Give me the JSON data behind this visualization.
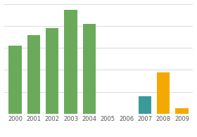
{
  "categories": [
    "2000",
    "2001",
    "2002",
    "2003",
    "2004",
    "2005",
    "2006",
    "2007",
    "2008",
    "2009"
  ],
  "values": [
    62,
    72,
    78,
    95,
    82,
    0,
    0,
    16,
    38,
    5
  ],
  "bar_colors": [
    "#6aaa5a",
    "#6aaa5a",
    "#6aaa5a",
    "#6aaa5a",
    "#6aaa5a",
    "#6aaa5a",
    "#6aaa5a",
    "#3a9a9a",
    "#f5a800",
    "#f5a800"
  ],
  "ylim": [
    0,
    100
  ],
  "background_color": "#ffffff",
  "grid_color": "#dddddd",
  "tick_fontsize": 6.0,
  "bar_width": 0.7
}
